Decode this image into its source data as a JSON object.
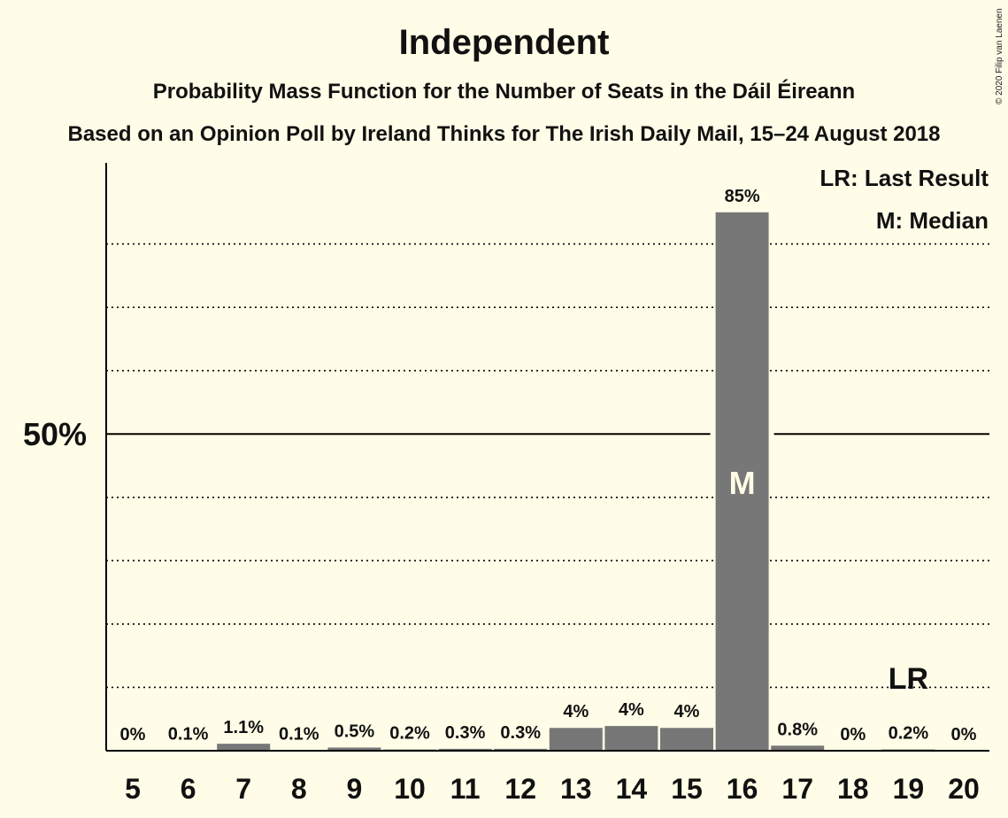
{
  "header": {
    "title": "Independent",
    "subtitle": "Probability Mass Function for the Number of Seats in the Dáil Éireann",
    "subtitle2": "Based on an Opinion Poll by Ireland Thinks for The Irish Daily Mail, 15–24 August 2018",
    "copyright": "© 2020 Filip van Laenen"
  },
  "chart_data": {
    "type": "bar",
    "categories": [
      "5",
      "6",
      "7",
      "8",
      "9",
      "10",
      "11",
      "12",
      "13",
      "14",
      "15",
      "16",
      "17",
      "18",
      "19",
      "20"
    ],
    "values": [
      0,
      0.1,
      1.1,
      0.1,
      0.5,
      0.2,
      0.3,
      0.3,
      3.6,
      3.9,
      3.6,
      85,
      0.8,
      0,
      0.2,
      0
    ],
    "data_labels": [
      "0%",
      "0.1%",
      "1.1%",
      "0.1%",
      "0.5%",
      "0.2%",
      "0.3%",
      "0.3%",
      "4%",
      "4%",
      "4%",
      "85%",
      "0.8%",
      "0%",
      "0.2%",
      "0%"
    ],
    "ylim": [
      0,
      93
    ],
    "y_tick_labels": [
      {
        "value": 50,
        "label": "50%"
      }
    ],
    "gridlines_dotted": [
      10,
      20,
      30,
      40,
      60,
      70,
      80
    ],
    "solid_line": 50,
    "median": {
      "category": "16",
      "marker": "M"
    },
    "last_result": {
      "category": "19",
      "marker": "LR"
    },
    "legend": [
      "LR: Last Result",
      "M: Median"
    ],
    "legend_position": "top-right",
    "colors": {
      "bar": "#777777",
      "background": "#fffde7",
      "axis": "#000000"
    }
  }
}
